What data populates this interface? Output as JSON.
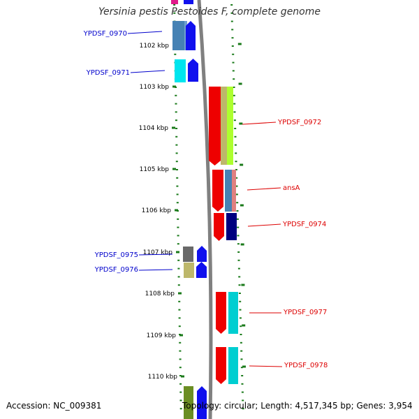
{
  "title": "Yersinia pestis Pestoides F, complete genome",
  "footer": {
    "accession": "Accession: NC_009381",
    "summary": "Topology: circular; Length: 4,517,345 bp; Genes: 3,954"
  },
  "colors": {
    "backbone": "#808080",
    "tick": "#1a7a1a",
    "forward_label": "#dd0000",
    "reverse_label": "#0000cc"
  },
  "scale_ticks": [
    "1102 kbp",
    "1103 kbp",
    "1104 kbp",
    "1105 kbp",
    "1106 kbp",
    "1107 kbp",
    "1108 kbp",
    "1109 kbp",
    "1110 kbp"
  ],
  "genes": [
    {
      "label": "YPDSF_0970",
      "strand": "reverse"
    },
    {
      "label": "YPDSF_0971",
      "strand": "reverse"
    },
    {
      "label": "YPDSF_0972",
      "strand": "forward"
    },
    {
      "label": "ansA",
      "strand": "forward"
    },
    {
      "label": "YPDSF_0974",
      "strand": "forward"
    },
    {
      "label": "YPDSF_0975",
      "strand": "reverse"
    },
    {
      "label": "YPDSF_0976",
      "strand": "reverse"
    },
    {
      "label": "YPDSF_0977",
      "strand": "forward"
    },
    {
      "label": "YPDSF_0978",
      "strand": "forward"
    }
  ]
}
